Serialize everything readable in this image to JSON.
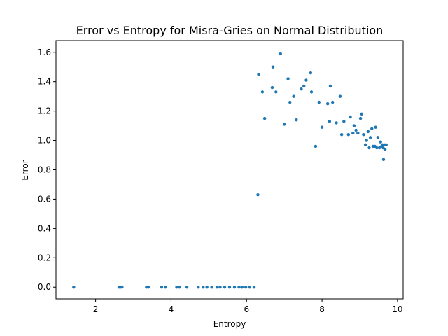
{
  "chart_data": {
    "type": "scatter",
    "title": "Error vs Entropy for Misra-Gries on Normal Distribution",
    "xlabel": "Entropy",
    "ylabel": "Error",
    "xlim": [
      0.95,
      10.15
    ],
    "ylim": [
      -0.08,
      1.68
    ],
    "x_ticks": [
      2,
      4,
      6,
      8,
      10
    ],
    "x_tick_labels": [
      "2",
      "4",
      "6",
      "8",
      "10"
    ],
    "y_ticks": [
      0.0,
      0.2,
      0.4,
      0.6,
      0.8,
      1.0,
      1.2,
      1.4,
      1.6
    ],
    "y_tick_labels": [
      "0.0",
      "0.2",
      "0.4",
      "0.6",
      "0.8",
      "1.0",
      "1.2",
      "1.4",
      "1.6"
    ],
    "grid": false,
    "marker_color": "#1f77b4",
    "points": [
      [
        1.42,
        0.0
      ],
      [
        2.62,
        0.0
      ],
      [
        2.66,
        0.0
      ],
      [
        2.7,
        0.0
      ],
      [
        3.35,
        0.0
      ],
      [
        3.4,
        0.0
      ],
      [
        3.75,
        0.0
      ],
      [
        3.85,
        0.0
      ],
      [
        4.15,
        0.0
      ],
      [
        4.22,
        0.0
      ],
      [
        4.42,
        0.0
      ],
      [
        4.72,
        0.0
      ],
      [
        4.85,
        0.0
      ],
      [
        4.95,
        0.0
      ],
      [
        5.08,
        0.0
      ],
      [
        5.22,
        0.0
      ],
      [
        5.3,
        0.0
      ],
      [
        5.42,
        0.0
      ],
      [
        5.55,
        0.0
      ],
      [
        5.68,
        0.0
      ],
      [
        5.8,
        0.0
      ],
      [
        5.88,
        0.0
      ],
      [
        5.98,
        0.0
      ],
      [
        6.08,
        0.0
      ],
      [
        6.2,
        0.0
      ],
      [
        6.3,
        0.63
      ],
      [
        6.32,
        1.45
      ],
      [
        6.42,
        1.33
      ],
      [
        6.48,
        1.15
      ],
      [
        6.68,
        1.36
      ],
      [
        6.7,
        1.5
      ],
      [
        6.78,
        1.33
      ],
      [
        6.9,
        1.59
      ],
      [
        7.0,
        1.11
      ],
      [
        7.1,
        1.42
      ],
      [
        7.15,
        1.26
      ],
      [
        7.25,
        1.3
      ],
      [
        7.32,
        1.14
      ],
      [
        7.45,
        1.35
      ],
      [
        7.52,
        1.37
      ],
      [
        7.58,
        1.41
      ],
      [
        7.7,
        1.46
      ],
      [
        7.72,
        1.33
      ],
      [
        7.83,
        0.96
      ],
      [
        7.92,
        1.26
      ],
      [
        8.0,
        1.09
      ],
      [
        8.15,
        1.25
      ],
      [
        8.2,
        1.13
      ],
      [
        8.22,
        1.37
      ],
      [
        8.28,
        1.26
      ],
      [
        8.38,
        1.12
      ],
      [
        8.48,
        1.3
      ],
      [
        8.52,
        1.04
      ],
      [
        8.58,
        1.13
      ],
      [
        8.7,
        1.04
      ],
      [
        8.75,
        1.16
      ],
      [
        8.82,
        1.05
      ],
      [
        8.85,
        1.1
      ],
      [
        8.9,
        1.07
      ],
      [
        8.95,
        1.05
      ],
      [
        9.02,
        1.15
      ],
      [
        9.05,
        1.18
      ],
      [
        9.1,
        1.04
      ],
      [
        9.15,
        0.97
      ],
      [
        9.18,
        1.0
      ],
      [
        9.22,
        1.06
      ],
      [
        9.25,
        0.95
      ],
      [
        9.28,
        1.02
      ],
      [
        9.32,
        1.08
      ],
      [
        9.35,
        0.96
      ],
      [
        9.4,
        0.96
      ],
      [
        9.42,
        1.09
      ],
      [
        9.45,
        0.95
      ],
      [
        9.48,
        1.02
      ],
      [
        9.52,
        0.95
      ],
      [
        9.55,
        0.99
      ],
      [
        9.58,
        0.96
      ],
      [
        9.6,
        0.97
      ],
      [
        9.62,
        0.95
      ],
      [
        9.63,
        0.87
      ],
      [
        9.65,
        0.97
      ],
      [
        9.67,
        0.94
      ],
      [
        9.7,
        0.97
      ]
    ]
  }
}
